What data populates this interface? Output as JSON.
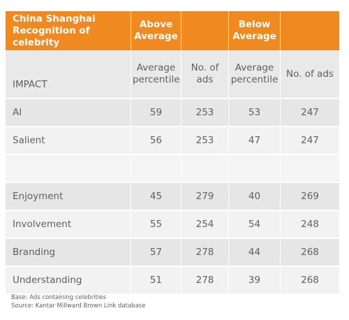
{
  "table": {
    "header": {
      "title": "China Shanghai Recognition of celebrity",
      "above": "Above Average",
      "below": "Below Average"
    },
    "subheader": {
      "impact": "IMPACT",
      "avg_percentile": "Average percentile",
      "num_ads": "No. of ads",
      "avg_percentile_2": "Average percentile",
      "num_ads_2": "No. of ads"
    },
    "rows": [
      {
        "label": "AI",
        "above_pct": "59",
        "above_ads": "253",
        "below_pct": "53",
        "below_ads": "247"
      },
      {
        "label": "Salient",
        "above_pct": "56",
        "above_ads": "253",
        "below_pct": "47",
        "below_ads": "247"
      },
      {
        "label": "Enjoyment",
        "above_pct": "45",
        "above_ads": "279",
        "below_pct": "40",
        "below_ads": "269"
      },
      {
        "label": "Involvement",
        "above_pct": "55",
        "above_ads": "254",
        "below_pct": "54",
        "below_ads": "248"
      },
      {
        "label": "Branding",
        "above_pct": "57",
        "above_ads": "278",
        "below_pct": "44",
        "below_ads": "268"
      },
      {
        "label": "Understanding",
        "above_pct": "51",
        "above_ads": "278",
        "below_pct": "39",
        "below_ads": "268"
      }
    ]
  },
  "notes": {
    "base": "Base: Ads containing celebrities",
    "source": "Source: Kantar Millward Brown Link database"
  },
  "colors": {
    "header_orange": "#f08a20",
    "row_dark": "#e6e6e6",
    "row_light": "#f2f2f2",
    "text_gray": "#606060"
  }
}
